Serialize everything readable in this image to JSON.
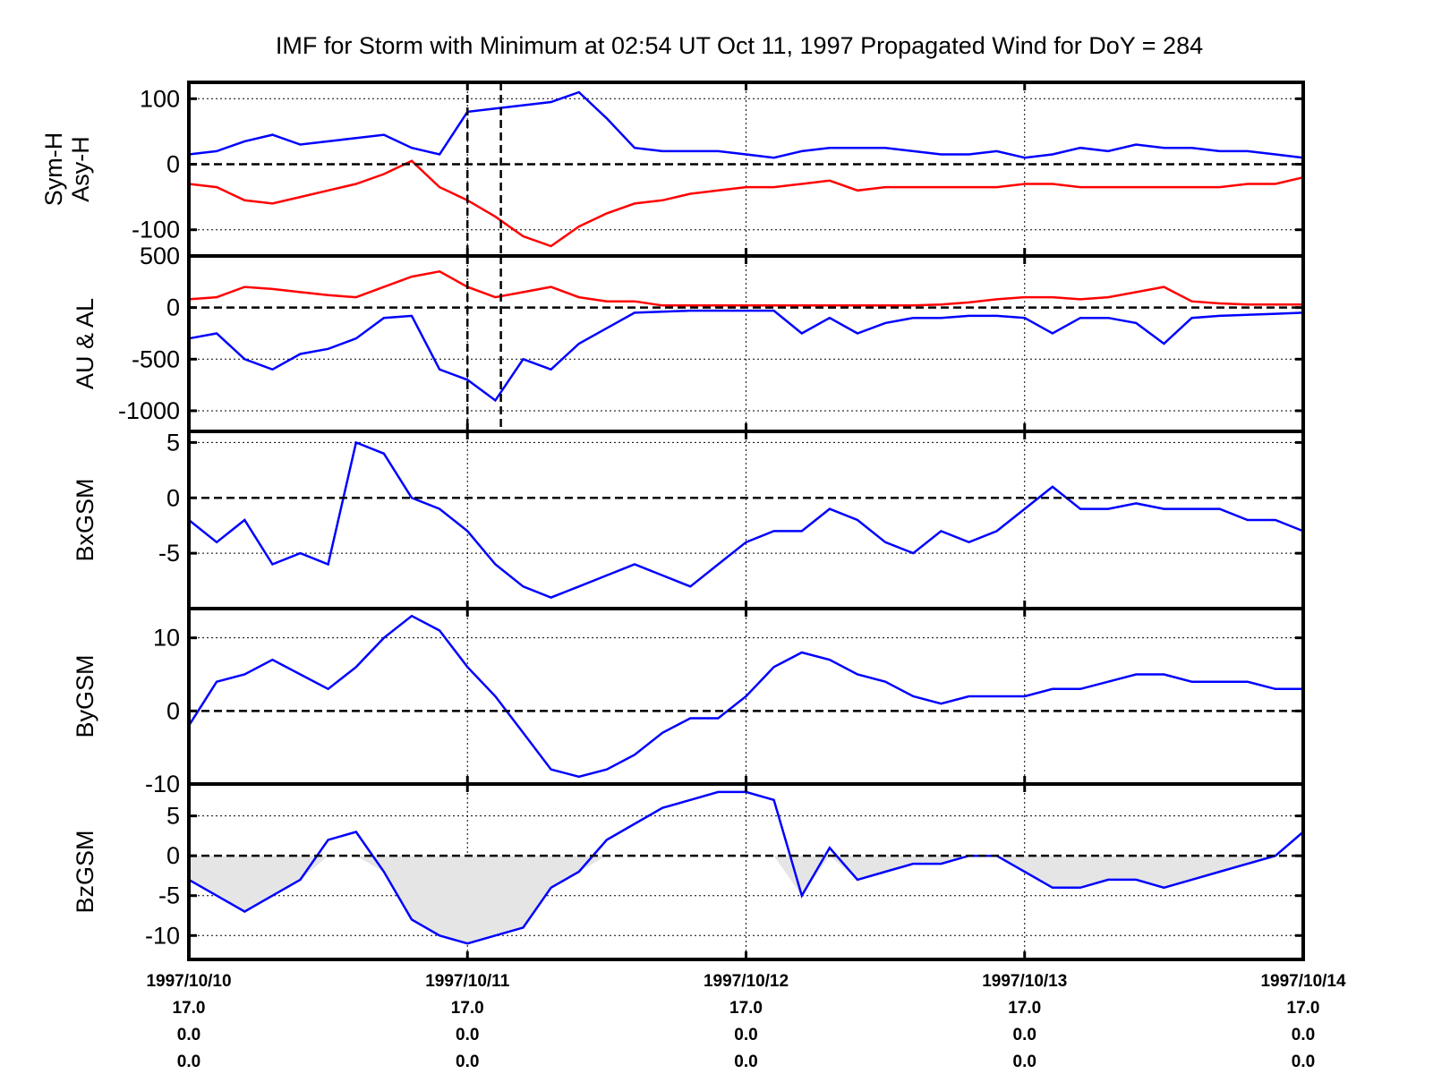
{
  "title": "IMF for Storm with Minimum at 02:54 UT Oct 11, 1997  Propagated Wind for DoY = 284",
  "chart_data": [
    {
      "type": "line",
      "ylabel": [
        "Sym-H",
        "Asy-H"
      ],
      "ylim": [
        -140,
        125
      ],
      "yticks": [
        100,
        0,
        -100
      ],
      "series": [
        {
          "name": "Asy-H",
          "color": "#0000ff",
          "x": [
            0,
            0.1,
            0.2,
            0.3,
            0.4,
            0.5,
            0.6,
            0.7,
            0.8,
            0.9,
            1.0,
            1.1,
            1.2,
            1.3,
            1.4,
            1.5,
            1.6,
            1.7,
            1.8,
            1.9,
            2.0,
            2.1,
            2.2,
            2.3,
            2.4,
            2.5,
            2.6,
            2.7,
            2.8,
            2.9,
            3.0,
            3.1,
            3.2,
            3.3,
            3.4,
            3.5,
            3.6,
            3.7,
            3.8,
            3.9,
            4.0
          ],
          "y": [
            15,
            20,
            35,
            45,
            30,
            35,
            40,
            45,
            25,
            15,
            80,
            85,
            90,
            95,
            110,
            70,
            25,
            20,
            20,
            20,
            15,
            10,
            20,
            25,
            25,
            25,
            20,
            15,
            15,
            20,
            10,
            15,
            25,
            20,
            30,
            25,
            25,
            20,
            20,
            15,
            10
          ]
        },
        {
          "name": "Sym-H",
          "color": "#ff0000",
          "x": [
            0,
            0.1,
            0.2,
            0.3,
            0.4,
            0.5,
            0.6,
            0.7,
            0.8,
            0.9,
            1.0,
            1.1,
            1.2,
            1.3,
            1.4,
            1.5,
            1.6,
            1.7,
            1.8,
            1.9,
            2.0,
            2.1,
            2.2,
            2.3,
            2.4,
            2.5,
            2.6,
            2.7,
            2.8,
            2.9,
            3.0,
            3.1,
            3.2,
            3.3,
            3.4,
            3.5,
            3.6,
            3.7,
            3.8,
            3.9,
            4.0
          ],
          "y": [
            -30,
            -35,
            -55,
            -60,
            -50,
            -40,
            -30,
            -15,
            5,
            -35,
            -55,
            -80,
            -110,
            -125,
            -95,
            -75,
            -60,
            -55,
            -45,
            -40,
            -35,
            -35,
            -30,
            -25,
            -40,
            -35,
            -35,
            -35,
            -35,
            -35,
            -30,
            -30,
            -35,
            -35,
            -35,
            -35,
            -35,
            -35,
            -30,
            -30,
            -20
          ]
        }
      ]
    },
    {
      "type": "line",
      "ylabel": [
        "AU & AL"
      ],
      "ylim": [
        -1200,
        500
      ],
      "yticks": [
        500,
        0,
        -500,
        -1000
      ],
      "series": [
        {
          "name": "AU",
          "color": "#ff0000",
          "x": [
            0,
            0.1,
            0.2,
            0.3,
            0.4,
            0.5,
            0.6,
            0.7,
            0.8,
            0.9,
            1.0,
            1.1,
            1.2,
            1.3,
            1.4,
            1.5,
            1.6,
            1.7,
            1.8,
            1.9,
            2.0,
            2.1,
            2.2,
            2.3,
            2.4,
            2.5,
            2.6,
            2.7,
            2.8,
            2.9,
            3.0,
            3.1,
            3.2,
            3.3,
            3.4,
            3.5,
            3.6,
            3.7,
            3.8,
            3.9,
            4.0
          ],
          "y": [
            80,
            100,
            200,
            180,
            150,
            120,
            100,
            200,
            300,
            350,
            200,
            100,
            150,
            200,
            100,
            60,
            60,
            20,
            20,
            20,
            20,
            20,
            20,
            20,
            20,
            20,
            20,
            30,
            50,
            80,
            100,
            100,
            80,
            100,
            150,
            200,
            60,
            40,
            30,
            30,
            30
          ]
        },
        {
          "name": "AL",
          "color": "#0000ff",
          "x": [
            0,
            0.1,
            0.2,
            0.3,
            0.4,
            0.5,
            0.6,
            0.7,
            0.8,
            0.9,
            1.0,
            1.1,
            1.2,
            1.3,
            1.4,
            1.5,
            1.6,
            1.7,
            1.8,
            1.9,
            2.0,
            2.1,
            2.2,
            2.3,
            2.4,
            2.5,
            2.6,
            2.7,
            2.8,
            2.9,
            3.0,
            3.1,
            3.2,
            3.3,
            3.4,
            3.5,
            3.6,
            3.7,
            3.8,
            3.9,
            4.0
          ],
          "y": [
            -300,
            -250,
            -500,
            -600,
            -450,
            -400,
            -300,
            -100,
            -80,
            -600,
            -700,
            -900,
            -500,
            -600,
            -350,
            -200,
            -50,
            -40,
            -30,
            -30,
            -30,
            -30,
            -250,
            -100,
            -250,
            -150,
            -100,
            -100,
            -80,
            -80,
            -100,
            -250,
            -100,
            -100,
            -150,
            -350,
            -100,
            -80,
            -70,
            -60,
            -50
          ]
        }
      ]
    },
    {
      "type": "line",
      "ylabel": [
        "BxGSM"
      ],
      "ylim": [
        -10,
        6
      ],
      "yticks": [
        5,
        0,
        -5
      ],
      "series": [
        {
          "name": "BxGSM",
          "color": "#0000ff",
          "x": [
            0,
            0.1,
            0.2,
            0.3,
            0.4,
            0.5,
            0.6,
            0.7,
            0.8,
            0.9,
            1.0,
            1.1,
            1.2,
            1.3,
            1.4,
            1.5,
            1.6,
            1.7,
            1.8,
            1.9,
            2.0,
            2.1,
            2.2,
            2.3,
            2.4,
            2.5,
            2.6,
            2.7,
            2.8,
            2.9,
            3.0,
            3.1,
            3.2,
            3.3,
            3.4,
            3.5,
            3.6,
            3.7,
            3.8,
            3.9,
            4.0
          ],
          "y": [
            -2,
            -4,
            -2,
            -6,
            -5,
            -6,
            5,
            4,
            0,
            -1,
            -3,
            -6,
            -8,
            -9,
            -8,
            -7,
            -6,
            -7,
            -8,
            -6,
            -4,
            -3,
            -3,
            -1,
            -2,
            -4,
            -5,
            -3,
            -4,
            -3,
            -1,
            1,
            -1,
            -1,
            -0.5,
            -1,
            -1,
            -1,
            -2,
            -2,
            -3
          ]
        }
      ]
    },
    {
      "type": "line",
      "ylabel": [
        "ByGSM"
      ],
      "ylim": [
        -10,
        14
      ],
      "yticks": [
        10,
        0,
        -10
      ],
      "series": [
        {
          "name": "ByGSM",
          "color": "#0000ff",
          "x": [
            0,
            0.1,
            0.2,
            0.3,
            0.4,
            0.5,
            0.6,
            0.7,
            0.8,
            0.9,
            1.0,
            1.1,
            1.2,
            1.3,
            1.4,
            1.5,
            1.6,
            1.7,
            1.8,
            1.9,
            2.0,
            2.1,
            2.2,
            2.3,
            2.4,
            2.5,
            2.6,
            2.7,
            2.8,
            2.9,
            3.0,
            3.1,
            3.2,
            3.3,
            3.4,
            3.5,
            3.6,
            3.7,
            3.8,
            3.9,
            4.0
          ],
          "y": [
            -2,
            4,
            5,
            7,
            5,
            3,
            6,
            10,
            13,
            11,
            6,
            2,
            -3,
            -8,
            -9,
            -8,
            -6,
            -3,
            -1,
            -1,
            2,
            6,
            8,
            7,
            5,
            4,
            2,
            1,
            2,
            2,
            2,
            3,
            3,
            4,
            5,
            5,
            4,
            4,
            4,
            3,
            3
          ]
        }
      ]
    },
    {
      "type": "area",
      "ylabel": [
        "BzGSM"
      ],
      "ylim": [
        -13,
        9
      ],
      "yticks": [
        5,
        0,
        -5,
        -10
      ],
      "series": [
        {
          "name": "BzGSM",
          "color": "#0000ff",
          "fill_negative": "#e5e5e5",
          "x": [
            0,
            0.1,
            0.2,
            0.3,
            0.4,
            0.5,
            0.6,
            0.7,
            0.8,
            0.9,
            1.0,
            1.1,
            1.2,
            1.3,
            1.4,
            1.5,
            1.6,
            1.7,
            1.8,
            1.9,
            2.0,
            2.1,
            2.2,
            2.3,
            2.4,
            2.5,
            2.6,
            2.7,
            2.8,
            2.9,
            3.0,
            3.1,
            3.2,
            3.3,
            3.4,
            3.5,
            3.6,
            3.7,
            3.8,
            3.9,
            4.0
          ],
          "y": [
            -3,
            -5,
            -7,
            -5,
            -3,
            2,
            3,
            -2,
            -8,
            -10,
            -11,
            -10,
            -9,
            -4,
            -2,
            2,
            4,
            6,
            7,
            8,
            8,
            7,
            -5,
            1,
            -3,
            -2,
            -1,
            -1,
            0,
            0,
            -2,
            -4,
            -4,
            -3,
            -3,
            -4,
            -3,
            -2,
            -1,
            0,
            3
          ]
        }
      ]
    }
  ],
  "x_axis": {
    "range": [
      0,
      4
    ],
    "ticks": [
      {
        "x": 0,
        "lines": [
          "1997/10/10",
          "17.0",
          "0.0",
          "0.0"
        ]
      },
      {
        "x": 1,
        "lines": [
          "1997/10/11",
          "17.0",
          "0.0",
          "0.0"
        ]
      },
      {
        "x": 2,
        "lines": [
          "1997/10/12",
          "17.0",
          "0.0",
          "0.0"
        ]
      },
      {
        "x": 3,
        "lines": [
          "1997/10/13",
          "17.0",
          "0.0",
          "0.0"
        ]
      },
      {
        "x": 4,
        "lines": [
          "1997/10/14",
          "17.0",
          "0.0",
          "0.0"
        ]
      }
    ],
    "grid": "dotted",
    "markers": [
      1.0,
      1.12
    ]
  }
}
